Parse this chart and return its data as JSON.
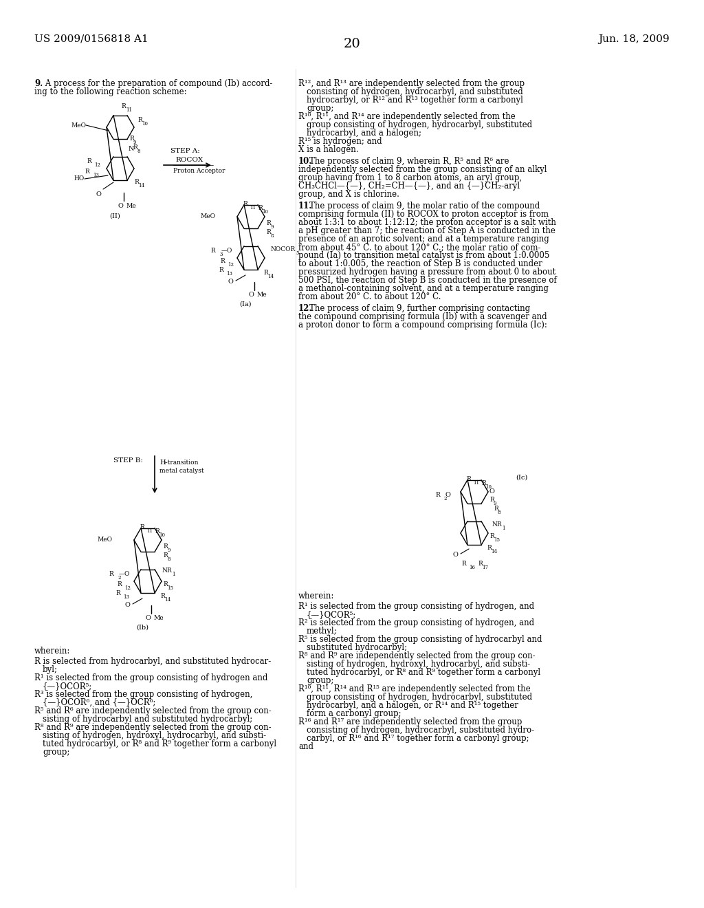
{
  "page_number": "20",
  "patent_number": "US 2009/0156818 A1",
  "patent_date": "Jun. 18, 2009",
  "background_color": "#ffffff",
  "text_color": "#000000",
  "font_size_header": 11,
  "font_size_body": 8.5,
  "font_size_page": 12
}
